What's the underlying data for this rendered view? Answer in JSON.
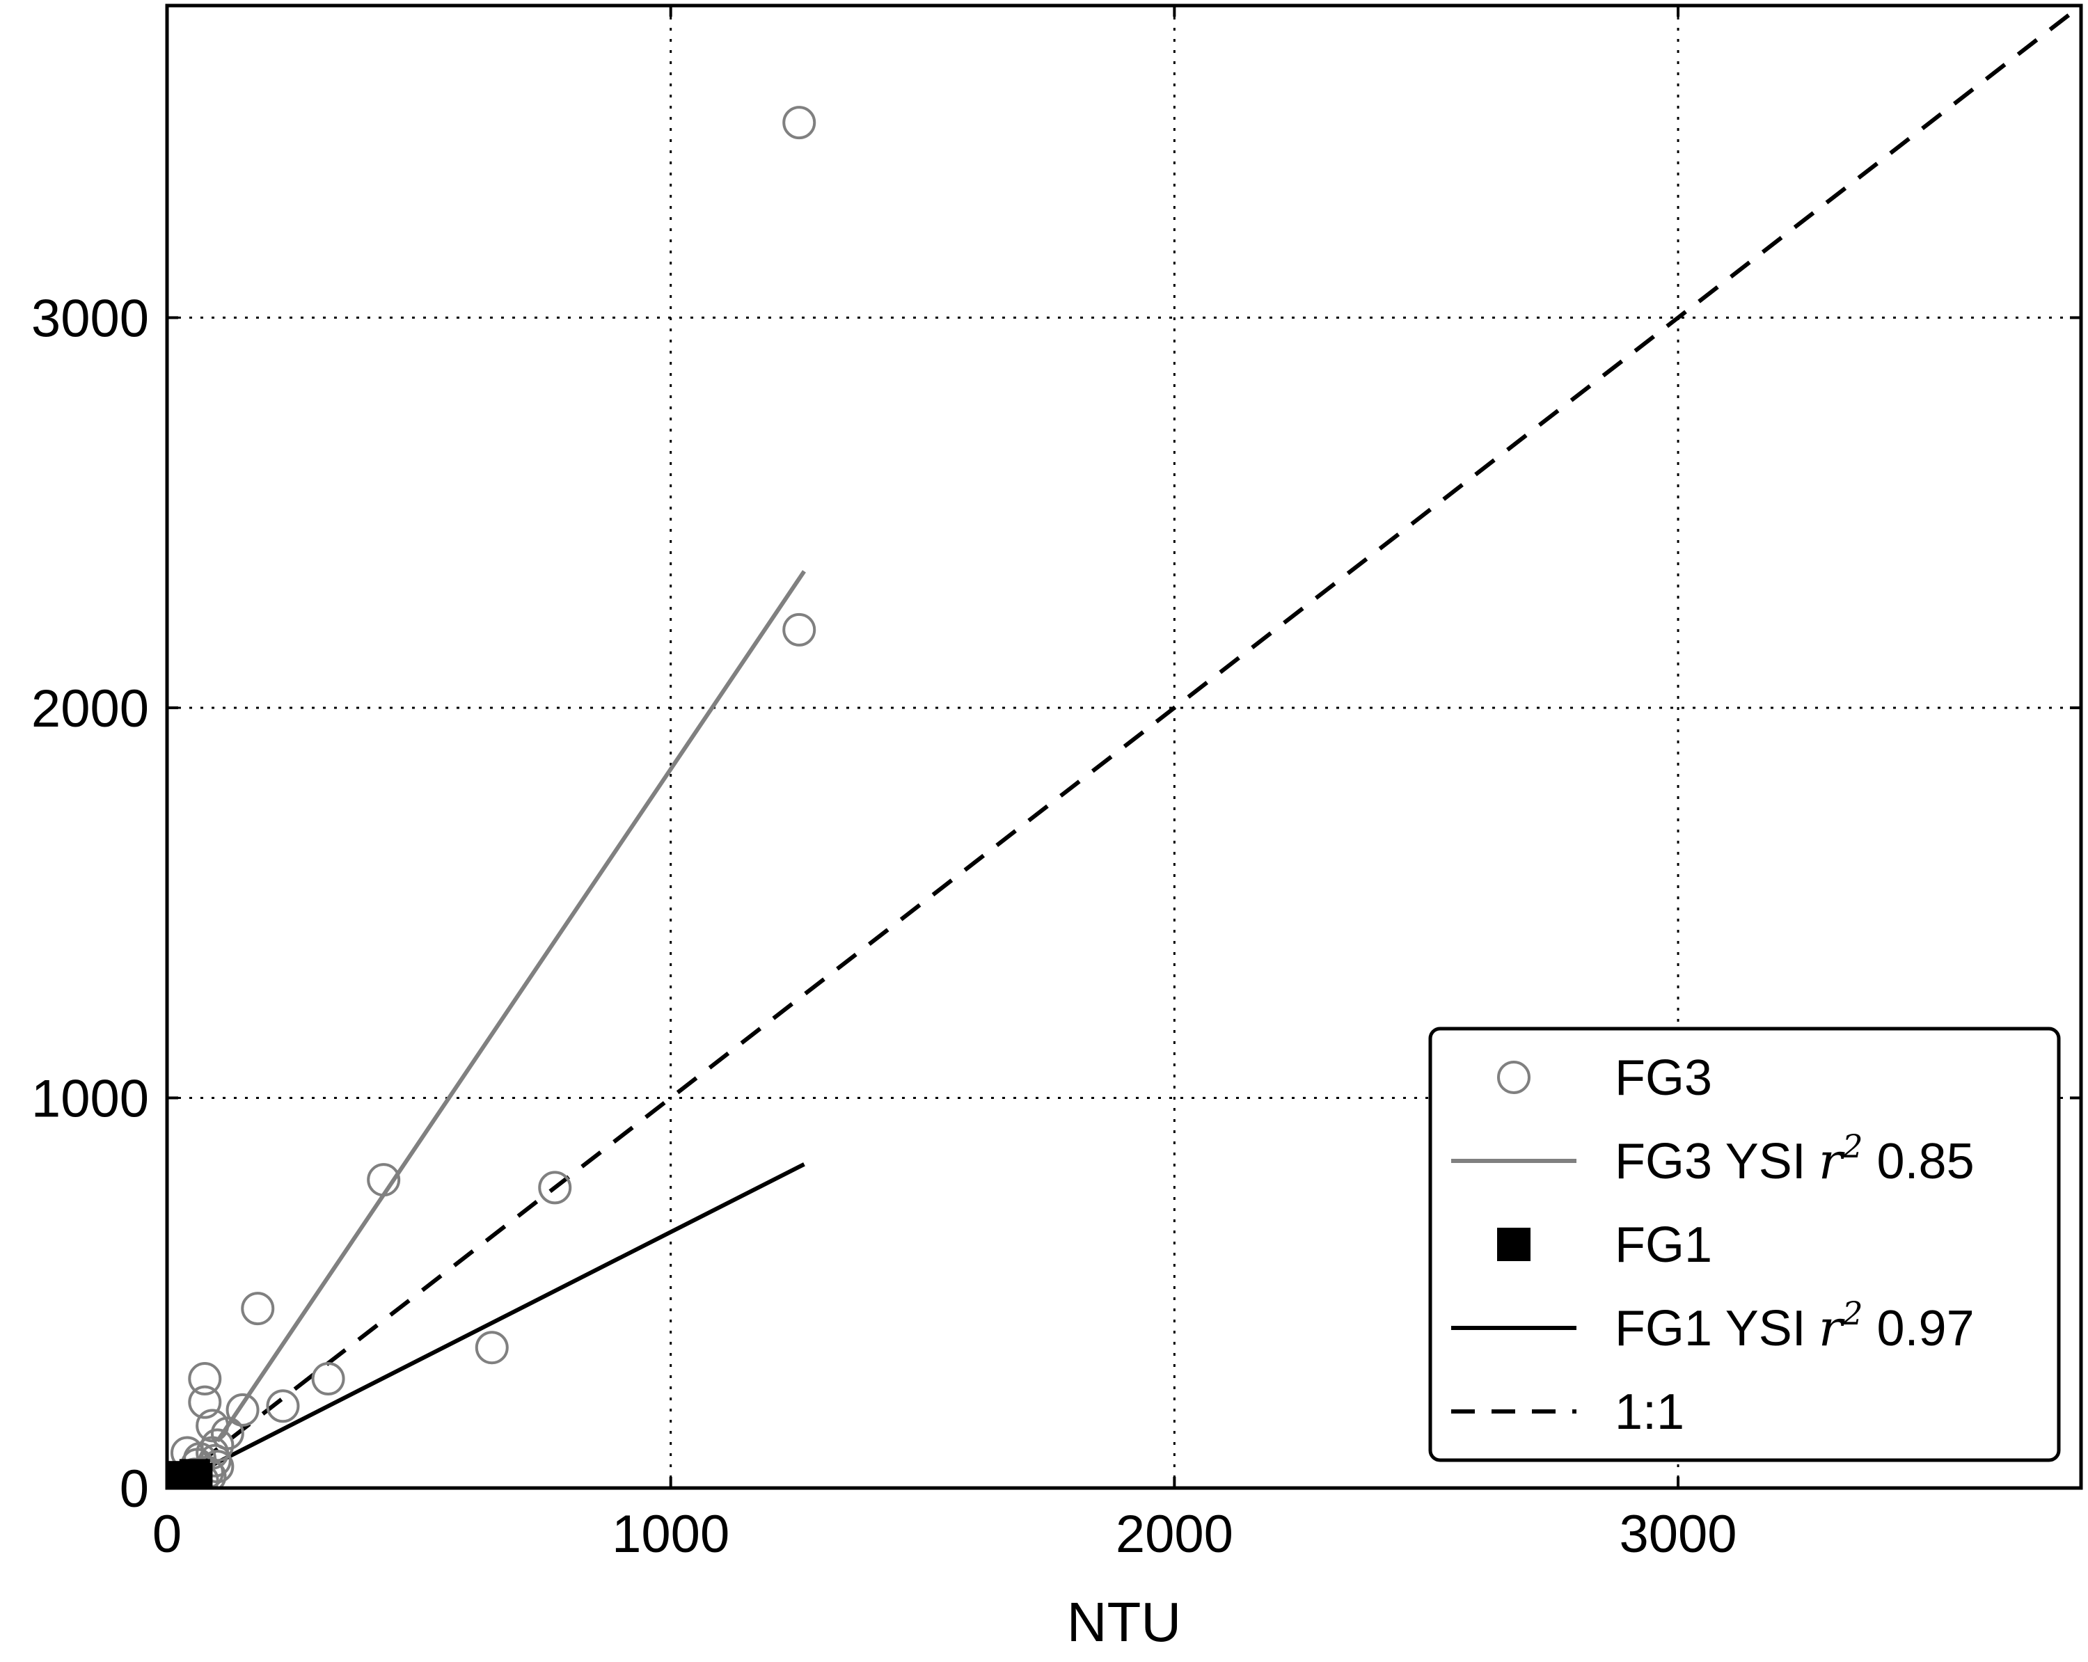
{
  "chart_data": {
    "type": "scatter",
    "xlabel": "NTU",
    "ylabel": "",
    "xlim": [
      0,
      3800
    ],
    "ylim": [
      0,
      3800
    ],
    "xticks": [
      0,
      1000,
      2000,
      3000
    ],
    "yticks": [
      0,
      1000,
      2000,
      3000
    ],
    "xtick_labels": [
      "0",
      "1000",
      "2000",
      "3000"
    ],
    "ytick_labels": [
      "0",
      "1000",
      "2000",
      "3000"
    ],
    "grid": true,
    "legend_position": "bottom-right",
    "series": [
      {
        "name": "FG3",
        "kind": "scatter",
        "marker": "open-circle",
        "color": "#808080",
        "points": [
          [
            1255,
            3500
          ],
          [
            1255,
            2200
          ],
          [
            430,
            790
          ],
          [
            770,
            770
          ],
          [
            180,
            460
          ],
          [
            645,
            360
          ],
          [
            320,
            280
          ],
          [
            75,
            280
          ],
          [
            230,
            210
          ],
          [
            150,
            200
          ],
          [
            75,
            220
          ],
          [
            90,
            160
          ],
          [
            120,
            140
          ],
          [
            100,
            110
          ],
          [
            90,
            90
          ],
          [
            95,
            70
          ],
          [
            60,
            60
          ],
          [
            40,
            90
          ],
          [
            80,
            40
          ],
          [
            85,
            30
          ],
          [
            70,
            20
          ],
          [
            55,
            35
          ],
          [
            100,
            55
          ],
          [
            65,
            75
          ],
          [
            45,
            15
          ]
        ]
      },
      {
        "name": "FG3 YSI",
        "r2_label": "0.85",
        "kind": "line",
        "color": "#808080",
        "points": [
          [
            100,
            120
          ],
          [
            1265,
            2350
          ]
        ]
      },
      {
        "name": "FG1",
        "kind": "scatter",
        "marker": "filled-square",
        "color": "#000000",
        "points": [
          [
            15,
            15
          ],
          [
            25,
            30
          ],
          [
            40,
            20
          ],
          [
            55,
            35
          ],
          [
            60,
            25
          ],
          [
            30,
            10
          ]
        ]
      },
      {
        "name": "FG1 YSI",
        "r2_label": "0.97",
        "kind": "line",
        "color": "#000000",
        "points": [
          [
            0,
            0
          ],
          [
            1265,
            830
          ]
        ]
      },
      {
        "name": "1:1",
        "kind": "line",
        "style": "dashed",
        "color": "#000000",
        "points": [
          [
            0,
            0
          ],
          [
            3800,
            3800
          ]
        ]
      }
    ],
    "legend": [
      {
        "label": "FG3",
        "series": "FG3"
      },
      {
        "label": "FG3 YSI",
        "r2": "0.85",
        "series": "FG3 YSI"
      },
      {
        "label": "FG1",
        "series": "FG1"
      },
      {
        "label": "FG1 YSI",
        "r2": "0.97",
        "series": "FG1 YSI"
      },
      {
        "label": "1:1",
        "series": "1:1"
      }
    ],
    "r_symbol": "r",
    "r_exp": "2"
  }
}
